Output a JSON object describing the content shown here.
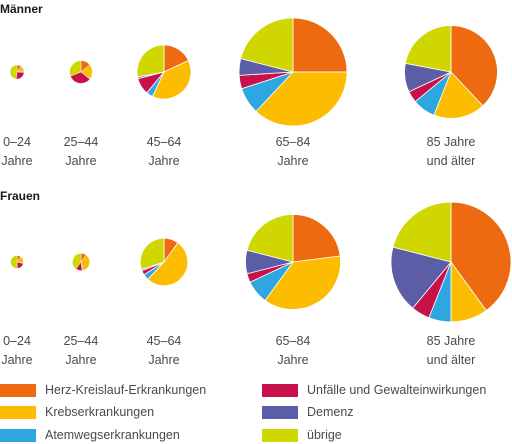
{
  "chart_data": {
    "type": "pie",
    "categories": [
      "Herz-Kreislauf-Erkrankungen",
      "Krebserkrankungen",
      "Atemwegserkrankungen",
      "Unfälle und Gewalteinwirkungen",
      "Demenz",
      "übrige"
    ],
    "colors": {
      "Herz-Kreislauf-Erkrankungen": "#ee6a10",
      "Krebserkrankungen": "#fcbd00",
      "Atemwegserkrankungen": "#2ea7e0",
      "Unfälle und Gewalteinwirkungen": "#c8104a",
      "Demenz": "#5b5ea6",
      "übrige": "#cfd600"
    },
    "age_groups": [
      {
        "label1": "0–24",
        "label2": "Jahre"
      },
      {
        "label1": "25–44",
        "label2": "Jahre"
      },
      {
        "label1": "45–64",
        "label2": "Jahre"
      },
      {
        "label1": "65–84",
        "label2": "Jahre"
      },
      {
        "label1": "85 Jahre",
        "label2": "und älter"
      }
    ],
    "groups": [
      {
        "title": "Männer",
        "pies": [
          {
            "size": 0.13,
            "slices": [
              {
                "category": "Herz-Kreislauf-Erkrankungen",
                "value": 10
              },
              {
                "category": "Krebserkrankungen",
                "value": 14
              },
              {
                "category": "Atemwegserkrankungen",
                "value": 2
              },
              {
                "category": "Unfälle und Gewalteinwirkungen",
                "value": 26
              },
              {
                "category": "Demenz",
                "value": 0
              },
              {
                "category": "übrige",
                "value": 48
              }
            ]
          },
          {
            "size": 0.21,
            "slices": [
              {
                "category": "Herz-Kreislauf-Erkrankungen",
                "value": 14
              },
              {
                "category": "Krebserkrankungen",
                "value": 21
              },
              {
                "category": "Atemwegserkrankungen",
                "value": 1
              },
              {
                "category": "Unfälle und Gewalteinwirkungen",
                "value": 33
              },
              {
                "category": "Demenz",
                "value": 0
              },
              {
                "category": "übrige",
                "value": 31
              }
            ]
          },
          {
            "size": 0.5,
            "slices": [
              {
                "category": "Herz-Kreislauf-Erkrankungen",
                "value": 18
              },
              {
                "category": "Krebserkrankungen",
                "value": 39
              },
              {
                "category": "Atemwegserkrankungen",
                "value": 4
              },
              {
                "category": "Unfälle und Gewalteinwirkungen",
                "value": 10
              },
              {
                "category": "Demenz",
                "value": 1
              },
              {
                "category": "übrige",
                "value": 28
              }
            ]
          },
          {
            "size": 1.0,
            "slices": [
              {
                "category": "Herz-Kreislauf-Erkrankungen",
                "value": 25
              },
              {
                "category": "Krebserkrankungen",
                "value": 37
              },
              {
                "category": "Atemwegserkrankungen",
                "value": 8
              },
              {
                "category": "Unfälle und Gewalteinwirkungen",
                "value": 4
              },
              {
                "category": "Demenz",
                "value": 5
              },
              {
                "category": "übrige",
                "value": 21
              }
            ]
          },
          {
            "size": 0.86,
            "slices": [
              {
                "category": "Herz-Kreislauf-Erkrankungen",
                "value": 38
              },
              {
                "category": "Krebserkrankungen",
                "value": 18
              },
              {
                "category": "Atemwegserkrankungen",
                "value": 8
              },
              {
                "category": "Unfälle und Gewalteinwirkungen",
                "value": 4
              },
              {
                "category": "Demenz",
                "value": 10
              },
              {
                "category": "übrige",
                "value": 22
              }
            ]
          }
        ]
      },
      {
        "title": "Frauen",
        "pies": [
          {
            "size": 0.12,
            "slices": [
              {
                "category": "Herz-Kreislauf-Erkrankungen",
                "value": 10
              },
              {
                "category": "Krebserkrankungen",
                "value": 17
              },
              {
                "category": "Atemwegserkrankungen",
                "value": 2
              },
              {
                "category": "Unfälle und Gewalteinwirkungen",
                "value": 20
              },
              {
                "category": "Demenz",
                "value": 0
              },
              {
                "category": "übrige",
                "value": 51
              }
            ]
          },
          {
            "size": 0.16,
            "slices": [
              {
                "category": "Herz-Kreislauf-Erkrankungen",
                "value": 10
              },
              {
                "category": "Krebserkrankungen",
                "value": 36
              },
              {
                "category": "Atemwegserkrankungen",
                "value": 2
              },
              {
                "category": "Unfälle und Gewalteinwirkungen",
                "value": 12
              },
              {
                "category": "Demenz",
                "value": 0
              },
              {
                "category": "übrige",
                "value": 40
              }
            ]
          },
          {
            "size": 0.44,
            "slices": [
              {
                "category": "Herz-Kreislauf-Erkrankungen",
                "value": 10
              },
              {
                "category": "Krebserkrankungen",
                "value": 52
              },
              {
                "category": "Atemwegserkrankungen",
                "value": 4
              },
              {
                "category": "Unfälle und Gewalteinwirkungen",
                "value": 3
              },
              {
                "category": "Demenz",
                "value": 1
              },
              {
                "category": "übrige",
                "value": 30
              }
            ]
          },
          {
            "size": 0.88,
            "slices": [
              {
                "category": "Herz-Kreislauf-Erkrankungen",
                "value": 23
              },
              {
                "category": "Krebserkrankungen",
                "value": 37
              },
              {
                "category": "Atemwegserkrankungen",
                "value": 8
              },
              {
                "category": "Unfälle und Gewalteinwirkungen",
                "value": 3
              },
              {
                "category": "Demenz",
                "value": 8
              },
              {
                "category": "übrige",
                "value": 21
              }
            ]
          },
          {
            "size": 1.11,
            "slices": [
              {
                "category": "Herz-Kreislauf-Erkrankungen",
                "value": 40
              },
              {
                "category": "Krebserkrankungen",
                "value": 10
              },
              {
                "category": "Atemwegserkrankungen",
                "value": 6
              },
              {
                "category": "Unfälle und Gewalteinwirkungen",
                "value": 5
              },
              {
                "category": "Demenz",
                "value": 18
              },
              {
                "category": "übrige",
                "value": 21
              }
            ]
          }
        ]
      }
    ],
    "legend": [
      "Herz-Kreislauf-Erkrankungen",
      "Unfälle und Gewalteinwirkungen",
      "Krebserkrankungen",
      "Demenz",
      "Atemwegserkrankungen",
      "übrige"
    ]
  }
}
